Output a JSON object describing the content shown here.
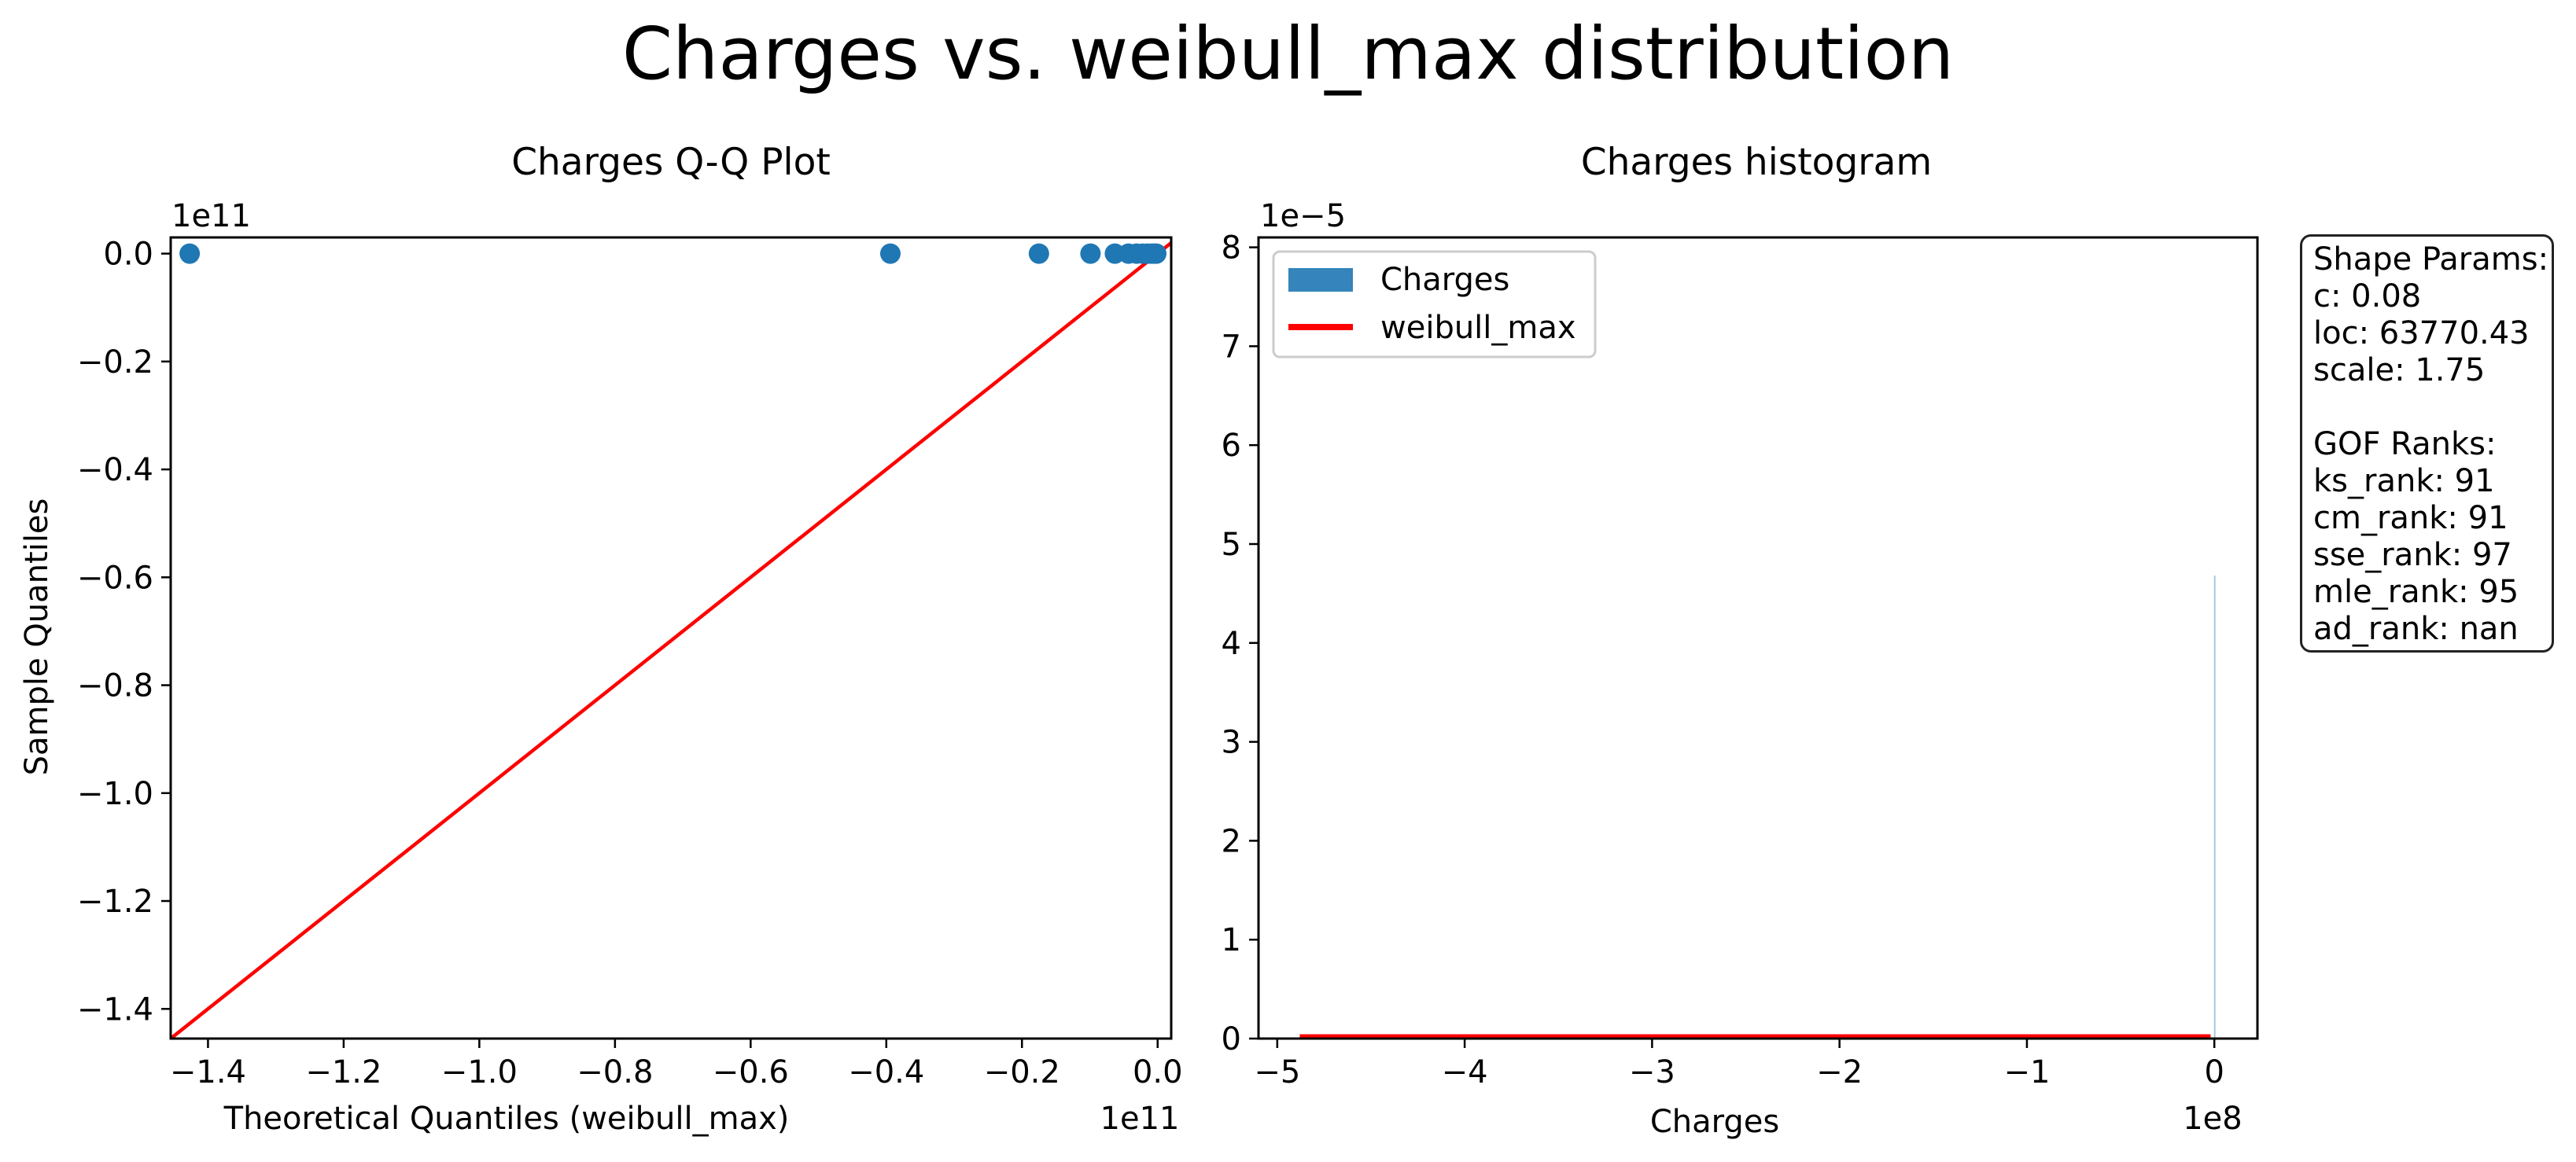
{
  "title": "Charges vs. weibull_max distribution",
  "colors": {
    "points": "#1f77b4",
    "line": "#ff0000",
    "hist": "#1f77b4",
    "hist_bar": "#a6c8e4"
  },
  "stats_box": {
    "header1": "Shape Params:",
    "c": "c: 0.08",
    "loc": "loc: 63770.43",
    "scale": "scale: 1.75",
    "header2": "GOF Ranks:",
    "ks": "ks_rank: 91",
    "cm": "cm_rank: 91",
    "sse": "sse_rank: 97",
    "mle": "mle_rank: 95",
    "ad": "ad_rank: nan"
  },
  "chart_data": [
    {
      "type": "scatter",
      "title": "Charges Q-Q Plot",
      "xlabel": "Theoretical Quantiles (weibull_max)",
      "ylabel": "Sample Quantiles",
      "x_offset_text": "1e11",
      "y_offset_text": "1e11",
      "xlim": [
        -1.455,
        0.02
      ],
      "ylim": [
        -1.455,
        0.03
      ],
      "xticks": [
        "−1.4",
        "−1.2",
        "−1.0",
        "−0.8",
        "−0.6",
        "−0.4",
        "−0.2",
        "0.0"
      ],
      "yticks": [
        "0.0",
        "−0.2",
        "−0.4",
        "−0.6",
        "−0.8",
        "−1.0",
        "−1.2",
        "−1.4"
      ],
      "points": [
        [
          -1.427,
          0.0
        ],
        [
          -0.394,
          0.0
        ],
        [
          -0.175,
          0.0
        ],
        [
          -0.099,
          0.0
        ],
        [
          -0.063,
          0.0
        ],
        [
          -0.043,
          0.0
        ],
        [
          -0.031,
          0.0
        ],
        [
          -0.022,
          0.0
        ],
        [
          -0.015,
          0.0
        ],
        [
          -0.009,
          0.0
        ],
        [
          -0.005,
          0.0
        ],
        [
          -0.002,
          0.0
        ]
      ],
      "reference_line": [
        [
          -1.455,
          -1.455
        ],
        [
          0.02,
          0.02
        ]
      ]
    },
    {
      "type": "bar",
      "title": "Charges histogram",
      "xlabel": "Charges",
      "x_offset_text": "1e8",
      "y_offset_text": "1e−5",
      "xlim": [
        -5.1,
        0.23
      ],
      "ylim": [
        0,
        8.1
      ],
      "xticks": [
        "−5",
        "−4",
        "−3",
        "−2",
        "−1",
        "0"
      ],
      "yticks": [
        "0",
        "1",
        "2",
        "3",
        "4",
        "5",
        "6",
        "7",
        "8"
      ],
      "series": [
        {
          "name": "Charges",
          "type": "bar",
          "bins": [
            [
              -0.002,
              0.004,
              4.68
            ]
          ]
        },
        {
          "name": "weibull_max",
          "type": "line",
          "x": [
            -4.88,
            -0.02
          ],
          "y": [
            0.02,
            0.02
          ]
        }
      ],
      "legend": [
        "Charges",
        "weibull_max"
      ],
      "legend_position": "upper left"
    }
  ]
}
